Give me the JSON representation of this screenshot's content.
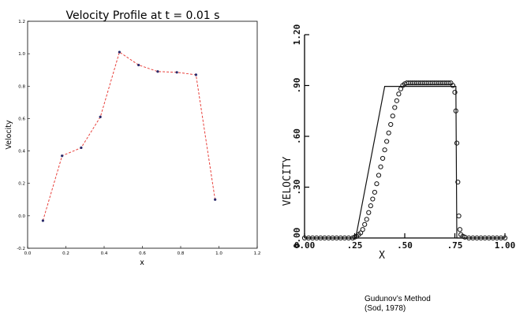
{
  "chart_data": [
    {
      "type": "line",
      "title": "Velocity Profile at t = 0.01 s",
      "xlabel": "x",
      "ylabel": "Velocity",
      "xlim": [
        0.0,
        1.2
      ],
      "ylim": [
        -0.2,
        1.2
      ],
      "xticks": [
        "0.0",
        "0.2",
        "0.4",
        "0.6",
        "0.8",
        "1.0",
        "1.2"
      ],
      "yticks": [
        "-0.2",
        "0.0",
        "0.2",
        "0.4",
        "0.6",
        "0.8",
        "1.0",
        "1.2"
      ],
      "line_style": "dashed",
      "line_color": "#e8413c",
      "marker_color": "#2a2a6a",
      "grid": false,
      "series": [
        {
          "x": [
            0.08,
            0.18,
            0.28,
            0.38,
            0.48,
            0.58,
            0.68,
            0.78,
            0.88,
            0.98
          ],
          "y": [
            -0.03,
            0.37,
            0.42,
            0.61,
            1.01,
            0.93,
            0.89,
            0.885,
            0.87,
            0.1
          ]
        }
      ]
    },
    {
      "type": "scatter",
      "title": "",
      "xlabel": "X",
      "ylabel": "VELOCITY",
      "xlim": [
        0.0,
        1.0
      ],
      "ylim": [
        0.0,
        1.2
      ],
      "xticks": [
        "0.00",
        ".25",
        ".50",
        ".75",
        "1.00"
      ],
      "yticks": [
        "0.00",
        ".30",
        ".60",
        ".90",
        "1.20"
      ],
      "grid": false,
      "series": [
        {
          "style": "solid-line",
          "x": [
            0.0,
            0.255,
            0.4,
            0.67,
            0.755,
            0.76,
            1.0
          ],
          "y": [
            0.0,
            0.0,
            0.895,
            0.895,
            0.895,
            0.0,
            0.0
          ]
        },
        {
          "style": "open-circles",
          "x": [
            0.0,
            0.02,
            0.04,
            0.06,
            0.08,
            0.1,
            0.12,
            0.14,
            0.16,
            0.18,
            0.2,
            0.22,
            0.24,
            0.25,
            0.26,
            0.27,
            0.28,
            0.29,
            0.3,
            0.31,
            0.32,
            0.33,
            0.34,
            0.35,
            0.36,
            0.37,
            0.38,
            0.39,
            0.4,
            0.41,
            0.42,
            0.43,
            0.44,
            0.45,
            0.46,
            0.47,
            0.48,
            0.49,
            0.5,
            0.51,
            0.52,
            0.53,
            0.54,
            0.55,
            0.56,
            0.57,
            0.58,
            0.59,
            0.6,
            0.61,
            0.62,
            0.63,
            0.64,
            0.65,
            0.66,
            0.67,
            0.68,
            0.69,
            0.7,
            0.71,
            0.72,
            0.73,
            0.74,
            0.75,
            0.755,
            0.76,
            0.765,
            0.77,
            0.775,
            0.78,
            0.79,
            0.8,
            0.82,
            0.84,
            0.86,
            0.88,
            0.9,
            0.92,
            0.94,
            0.96,
            0.98,
            1.0
          ],
          "y": [
            0.0,
            0.0,
            0.0,
            0.0,
            0.0,
            0.0,
            0.0,
            0.0,
            0.0,
            0.0,
            0.0,
            0.0,
            0.0,
            0.005,
            0.01,
            0.02,
            0.03,
            0.05,
            0.08,
            0.11,
            0.15,
            0.19,
            0.23,
            0.27,
            0.32,
            0.37,
            0.42,
            0.47,
            0.52,
            0.57,
            0.62,
            0.67,
            0.72,
            0.77,
            0.81,
            0.85,
            0.88,
            0.9,
            0.91,
            0.915,
            0.915,
            0.915,
            0.915,
            0.915,
            0.915,
            0.915,
            0.915,
            0.915,
            0.915,
            0.915,
            0.915,
            0.915,
            0.915,
            0.915,
            0.915,
            0.915,
            0.915,
            0.915,
            0.915,
            0.915,
            0.915,
            0.915,
            0.9,
            0.86,
            0.75,
            0.56,
            0.33,
            0.13,
            0.05,
            0.02,
            0.01,
            0.005,
            0.0,
            0.0,
            0.0,
            0.0,
            0.0,
            0.0,
            0.0,
            0.0,
            0.0,
            0.0
          ]
        }
      ]
    }
  ],
  "caption": {
    "line1": "Gudunov’s Method",
    "line2": "(Sod, 1978)"
  }
}
